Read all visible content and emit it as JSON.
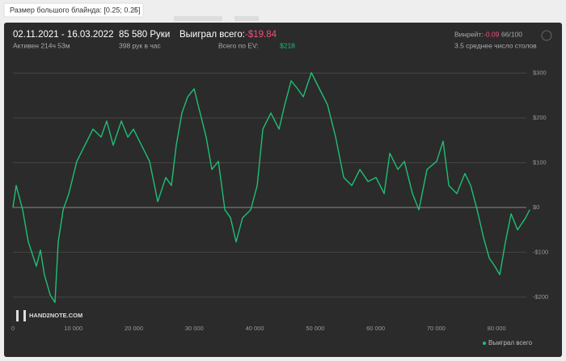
{
  "filter_tag": {
    "text": "Размер большого блайнда: [0.25; 0.25]",
    "close": "×"
  },
  "stats": {
    "period": "02.11.2021 - 16.03.2022",
    "active": "Активен 214ч 53м",
    "hands": "85 580 Руки",
    "hands_per_hour": "398 рук в час",
    "won_label": "Выиграл всего:",
    "won_value": "-$19.84",
    "ev_label": "Всего по EV:",
    "ev_value": "$218",
    "winrate_label": "Винрейт:",
    "winrate_value": "-0.09",
    "winrate_rest": "66/100",
    "tables": "3.5 среднее число столов"
  },
  "logo": "HAND2NOTE.COM",
  "chart_data": {
    "type": "line",
    "x": [
      0,
      535,
      1600,
      2540,
      3880,
      4550,
      5200,
      6150,
      6960,
      7490,
      8300,
      9230,
      10570,
      11900,
      13240,
      14580,
      15520,
      16590,
      17930,
      19000,
      19930,
      21270,
      22610,
      23950,
      25280,
      26220,
      27020,
      27960,
      28900,
      29970,
      30630,
      31970,
      32900,
      33980,
      35050,
      35990,
      36920,
      37990,
      39330,
      40400,
      41340,
      42670,
      44010,
      44950,
      46020,
      47090,
      48030,
      49370,
      50710,
      52040,
      53380,
      54720,
      56060,
      57390,
      58730,
      60070,
      61400,
      62340,
      63680,
      64750,
      66080,
      67150,
      68490,
      70090,
      71160,
      72100,
      73430,
      74770,
      75710,
      76780,
      77850,
      78790,
      79720,
      80530,
      81470,
      82400,
      83470,
      84810,
      85480
    ],
    "series": [
      {
        "name": "Выиграл всего",
        "color": "#1fbf73",
        "values": [
          0,
          49,
          -5,
          -77,
          -131,
          -95,
          -150,
          -195,
          -212,
          -77,
          -5,
          30,
          103,
          139,
          175,
          157,
          193,
          139,
          193,
          157,
          175,
          139,
          103,
          13,
          67,
          49,
          139,
          211,
          247,
          265,
          229,
          157,
          85,
          103,
          -5,
          -23,
          -77,
          -23,
          -5,
          49,
          175,
          211,
          175,
          229,
          283,
          265,
          247,
          301,
          265,
          229,
          157,
          67,
          49,
          85,
          58,
          67,
          31,
          121,
          85,
          103,
          31,
          -5,
          85,
          103,
          148,
          49,
          31,
          76,
          49,
          -5,
          -68,
          -113,
          -131,
          -150,
          -77,
          -14,
          -50,
          -23,
          -5
        ]
      }
    ],
    "xlim": [
      0,
      86000
    ],
    "ylim": [
      -240,
      310
    ],
    "xticks": [
      0,
      {
        "value": 10000,
        "label": "10 000"
      },
      {
        "value": 20000,
        "label": "20 000"
      },
      {
        "value": 30000,
        "label": "30 000"
      },
      {
        "value": 40000,
        "label": "40 000"
      },
      {
        "value": 50000,
        "label": "50 000"
      },
      {
        "value": 60000,
        "label": "60 000"
      },
      {
        "value": 70000,
        "label": "70 000"
      },
      {
        "value": 80000,
        "label": "80 000"
      }
    ],
    "yticks": [
      {
        "value": -200,
        "label": "-$200"
      },
      {
        "value": -100,
        "label": "-$100"
      },
      {
        "value": 0,
        "label": "$0"
      },
      {
        "value": 100,
        "label": "$100"
      },
      {
        "value": 200,
        "label": "$200"
      },
      {
        "value": 300,
        "label": "$300"
      }
    ],
    "grid": true
  }
}
